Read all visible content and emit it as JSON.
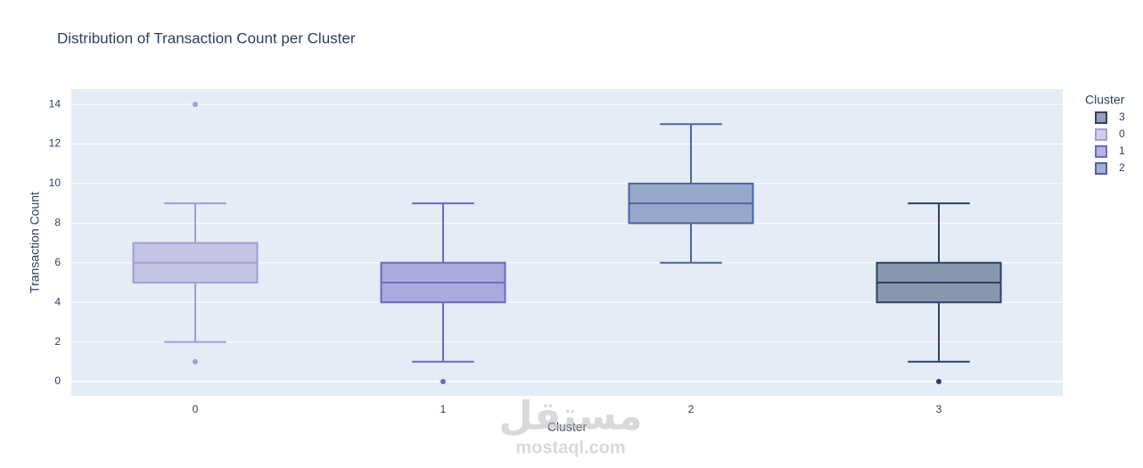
{
  "chart_data": {
    "type": "box",
    "title": "Distribution of Transaction Count per Cluster",
    "x_label": "Cluster",
    "y_label": "Transaction Count",
    "categories": [
      "0",
      "1",
      "2",
      "3"
    ],
    "legend_title": "Cluster",
    "legend_position": "right",
    "series": [
      {
        "name": "3",
        "color": "#2d4266",
        "q1": 4,
        "median": 5,
        "q3": 6,
        "lowerfence": 1,
        "upperfence": 9,
        "outliers": [
          0
        ]
      },
      {
        "name": "0",
        "color": "#a39dd3",
        "q1": 5,
        "median": 6,
        "q3": 7,
        "lowerfence": 2,
        "upperfence": 9,
        "outliers": [
          14,
          1
        ]
      },
      {
        "name": "1",
        "color": "#6f68c4",
        "q1": 4,
        "median": 5,
        "q3": 6,
        "lowerfence": 1,
        "upperfence": 9,
        "outliers": [
          0
        ]
      },
      {
        "name": "2",
        "color": "#4c64a0",
        "q1": 8,
        "median": 9,
        "q3": 10,
        "lowerfence": 6,
        "upperfence": 13,
        "outliers": []
      }
    ],
    "ylim": [
      -0.72,
      14.77
    ],
    "yticks": [
      0,
      2,
      4,
      6,
      8,
      10,
      12,
      14
    ],
    "grid": true,
    "watermark": "مستقل",
    "watermark_url": "mostaql.com"
  }
}
